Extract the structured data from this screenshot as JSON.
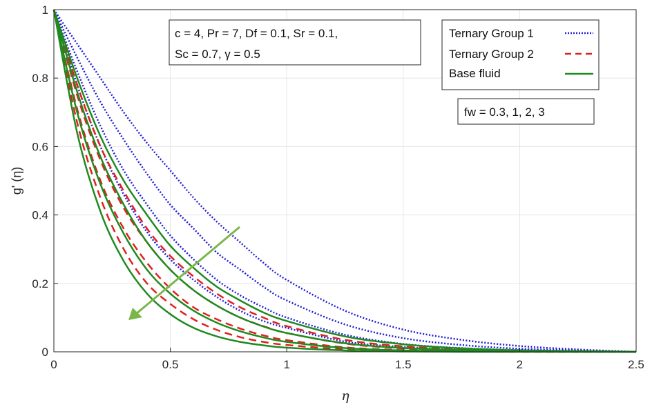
{
  "chart_data": {
    "type": "line",
    "title": "",
    "xlabel": "η",
    "ylabel": "g' (η)",
    "xlim": [
      0,
      2.5
    ],
    "ylim": [
      0,
      1
    ],
    "xticks": [
      "0",
      "0.5",
      "1",
      "1.5",
      "2",
      "2.5"
    ],
    "yticks": [
      "0",
      "0.2",
      "0.4",
      "0.6",
      "0.8",
      "1"
    ],
    "grid": true,
    "legend_position": "top-right",
    "parameter_box": {
      "line1": "c = 4, Pr = 7, Df = 0.1, Sr = 0.1,",
      "line2": "Sc = 0.7, γ = 0.5"
    },
    "fw_label": "fw = 0.3, 1, 2, 3",
    "arrow_direction": "increasing fw",
    "series": [
      {
        "name": "Ternary Group 1",
        "color": "#1f1fd6",
        "dash": "dotted",
        "curves": [
          {
            "fw": 0.3,
            "x": [
              0,
              0.1,
              0.2,
              0.3,
              0.4,
              0.5,
              0.6,
              0.7,
              0.8,
              0.9,
              1.0,
              1.25,
              1.5,
              1.75,
              2.0,
              2.25,
              2.5
            ],
            "y": [
              1,
              0.9,
              0.8,
              0.7,
              0.61,
              0.53,
              0.45,
              0.38,
              0.32,
              0.26,
              0.21,
              0.12,
              0.065,
              0.035,
              0.017,
              0.007,
              0
            ]
          },
          {
            "fw": 1,
            "x": [
              0,
              0.1,
              0.2,
              0.3,
              0.4,
              0.5,
              0.6,
              0.7,
              0.8,
              0.9,
              1.0,
              1.25,
              1.5,
              1.75,
              2.0,
              2.25,
              2.5
            ],
            "y": [
              1,
              0.86,
              0.73,
              0.62,
              0.52,
              0.43,
              0.36,
              0.29,
              0.24,
              0.19,
              0.15,
              0.08,
              0.04,
              0.02,
              0.009,
              0.004,
              0
            ]
          },
          {
            "fw": 2,
            "x": [
              0,
              0.1,
              0.2,
              0.3,
              0.4,
              0.5,
              0.6,
              0.7,
              0.8,
              0.9,
              1.0,
              1.25,
              1.5,
              1.75,
              2.0,
              2.25,
              2.5
            ],
            "y": [
              1,
              0.82,
              0.66,
              0.53,
              0.43,
              0.34,
              0.27,
              0.21,
              0.165,
              0.13,
              0.1,
              0.05,
              0.023,
              0.011,
              0.005,
              0.002,
              0
            ]
          },
          {
            "fw": 3,
            "x": [
              0,
              0.1,
              0.2,
              0.3,
              0.4,
              0.5,
              0.6,
              0.7,
              0.8,
              0.9,
              1.0,
              1.25,
              1.5,
              1.75,
              2.0,
              2.25,
              2.5
            ],
            "y": [
              1,
              0.78,
              0.6,
              0.46,
              0.35,
              0.27,
              0.21,
              0.16,
              0.12,
              0.09,
              0.07,
              0.03,
              0.014,
              0.006,
              0.003,
              0.001,
              0
            ]
          }
        ]
      },
      {
        "name": "Ternary Group 2",
        "color": "#e02020",
        "dash": "dashed",
        "curves": [
          {
            "fw": 0.3,
            "x": [
              0,
              0.1,
              0.2,
              0.3,
              0.4,
              0.5,
              0.6,
              0.7,
              0.8,
              0.9,
              1.0,
              1.25,
              1.5,
              1.75,
              2.0,
              2.25,
              2.5
            ],
            "y": [
              1,
              0.78,
              0.6,
              0.47,
              0.36,
              0.28,
              0.22,
              0.17,
              0.13,
              0.1,
              0.075,
              0.035,
              0.016,
              0.007,
              0.003,
              0.001,
              0
            ]
          },
          {
            "fw": 1,
            "x": [
              0,
              0.1,
              0.2,
              0.3,
              0.4,
              0.5,
              0.6,
              0.7,
              0.8,
              0.9,
              1.0,
              1.25,
              1.5,
              1.75,
              2.0,
              2.25,
              2.5
            ],
            "y": [
              1,
              0.75,
              0.56,
              0.42,
              0.32,
              0.24,
              0.18,
              0.135,
              0.1,
              0.075,
              0.055,
              0.024,
              0.01,
              0.004,
              0.002,
              0.001,
              0
            ]
          },
          {
            "fw": 2,
            "x": [
              0,
              0.1,
              0.2,
              0.3,
              0.4,
              0.5,
              0.6,
              0.7,
              0.8,
              0.9,
              1.0,
              1.25,
              1.5,
              1.75,
              2.0,
              2.25,
              2.5
            ],
            "y": [
              1,
              0.71,
              0.5,
              0.36,
              0.26,
              0.185,
              0.13,
              0.095,
              0.068,
              0.048,
              0.034,
              0.013,
              0.005,
              0.002,
              0.001,
              0,
              0
            ]
          },
          {
            "fw": 3,
            "x": [
              0,
              0.1,
              0.2,
              0.3,
              0.4,
              0.5,
              0.6,
              0.7,
              0.8,
              0.9,
              1.0,
              1.25,
              1.5,
              1.75,
              2.0,
              2.25,
              2.5
            ],
            "y": [
              1,
              0.67,
              0.45,
              0.3,
              0.2,
              0.14,
              0.095,
              0.064,
              0.043,
              0.029,
              0.02,
              0.007,
              0.002,
              0.001,
              0,
              0,
              0
            ]
          }
        ]
      },
      {
        "name": "Base fluid",
        "color": "#1f8a1f",
        "dash": "solid",
        "curves": [
          {
            "fw": 0.3,
            "x": [
              0,
              0.1,
              0.2,
              0.3,
              0.4,
              0.5,
              0.6,
              0.7,
              0.8,
              0.9,
              1.0,
              1.25,
              1.5,
              1.75,
              2.0,
              2.25,
              2.5
            ],
            "y": [
              1,
              0.8,
              0.63,
              0.5,
              0.4,
              0.31,
              0.245,
              0.19,
              0.15,
              0.115,
              0.09,
              0.045,
              0.022,
              0.01,
              0.004,
              0.002,
              0
            ]
          },
          {
            "fw": 1,
            "x": [
              0,
              0.1,
              0.2,
              0.3,
              0.4,
              0.5,
              0.6,
              0.7,
              0.8,
              0.9,
              1.0,
              1.25,
              1.5,
              1.75,
              2.0,
              2.25,
              2.5
            ],
            "y": [
              1,
              0.76,
              0.57,
              0.43,
              0.32,
              0.24,
              0.18,
              0.135,
              0.1,
              0.074,
              0.055,
              0.025,
              0.011,
              0.005,
              0.002,
              0.001,
              0
            ]
          },
          {
            "fw": 2,
            "x": [
              0,
              0.1,
              0.2,
              0.3,
              0.4,
              0.5,
              0.6,
              0.7,
              0.8,
              0.9,
              1.0,
              1.25,
              1.5,
              1.75,
              2.0,
              2.25,
              2.5
            ],
            "y": [
              1,
              0.7,
              0.49,
              0.345,
              0.24,
              0.17,
              0.12,
              0.085,
              0.06,
              0.042,
              0.029,
              0.011,
              0.004,
              0.002,
              0.001,
              0,
              0
            ]
          },
          {
            "fw": 3,
            "x": [
              0,
              0.1,
              0.2,
              0.3,
              0.4,
              0.5,
              0.6,
              0.7,
              0.8,
              0.9,
              1.0,
              1.25,
              1.5,
              1.75,
              2.0,
              2.25,
              2.5
            ],
            "y": [
              1,
              0.64,
              0.41,
              0.265,
              0.17,
              0.11,
              0.07,
              0.045,
              0.029,
              0.019,
              0.012,
              0.004,
              0.001,
              0,
              0,
              0,
              0
            ]
          }
        ]
      }
    ],
    "colors": {
      "accent_arrow": "#7ab648"
    }
  }
}
